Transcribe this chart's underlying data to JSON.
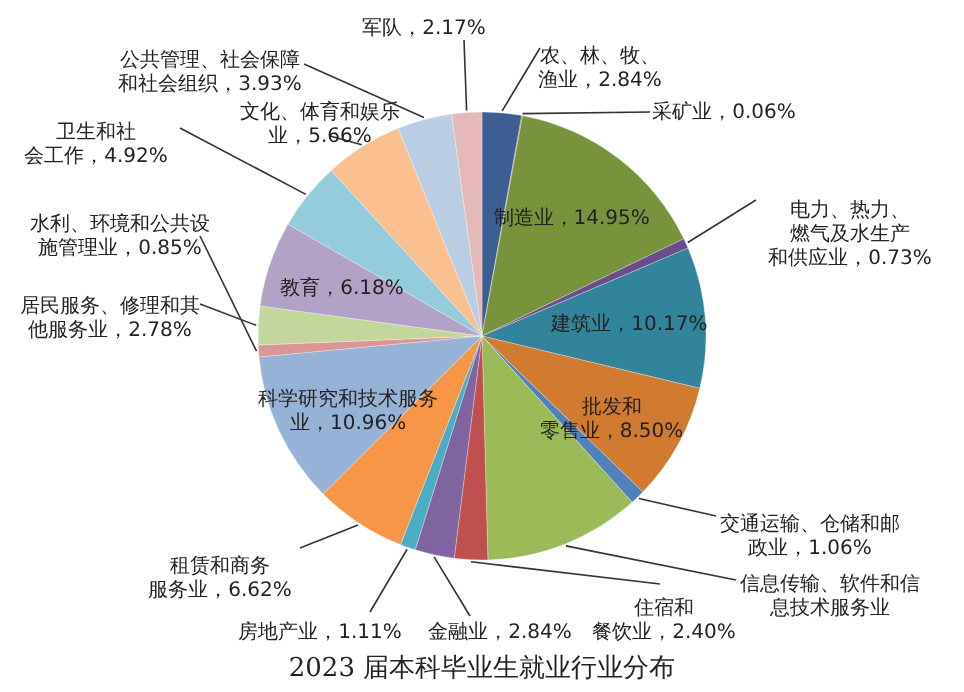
{
  "chart_data": {
    "type": "pie",
    "title": "2023 届本科毕业生就业行业分布",
    "categories": [
      "农、林、牧、渔业",
      "采矿业",
      "制造业",
      "电力、热力、燃气及水生产和供应业",
      "建筑业",
      "批发和零售业",
      "交通运输、仓储和邮政业",
      "信息传输、软件和信息技术服务业",
      "住宿和餐饮业",
      "金融业",
      "房地产业",
      "租赁和商务服务业",
      "科学研究和技术服务业",
      "水利、环境和公共设施管理业",
      "居民服务、修理和其他服务业",
      "教育",
      "卫生和社会工作",
      "文化、体育和娱乐业",
      "公共管理、社会保障和社会组织",
      "军队"
    ],
    "values": [
      2.84,
      0.06,
      14.95,
      0.73,
      10.17,
      8.5,
      1.06,
      11.27,
      2.4,
      2.84,
      1.11,
      6.62,
      10.96,
      0.85,
      2.78,
      6.18,
      4.92,
      5.66,
      3.93,
      2.17
    ],
    "value_labels": [
      "2.84%",
      "0.06%",
      "14.95%",
      "0.73%",
      "10.17%",
      "8.50%",
      "1.06%",
      null,
      "2.40%",
      "2.84%",
      "1.11%",
      "6.62%",
      "10.96%",
      "0.85%",
      "2.78%",
      "6.18%",
      "4.92%",
      "5.66%",
      "3.93%",
      "2.17%"
    ],
    "colors": [
      "#3b5f93",
      "#b94a48",
      "#77933c",
      "#6b4c8a",
      "#31849b",
      "#d07b30",
      "#4f81bd",
      "#9bbb59",
      "#c0504d",
      "#8064a2",
      "#4bacc6",
      "#f79646",
      "#95b3d7",
      "#d99694",
      "#c3d69b",
      "#b3a2c7",
      "#93cddd",
      "#fac090",
      "#b9cde5",
      "#e6b9b8"
    ]
  }
}
